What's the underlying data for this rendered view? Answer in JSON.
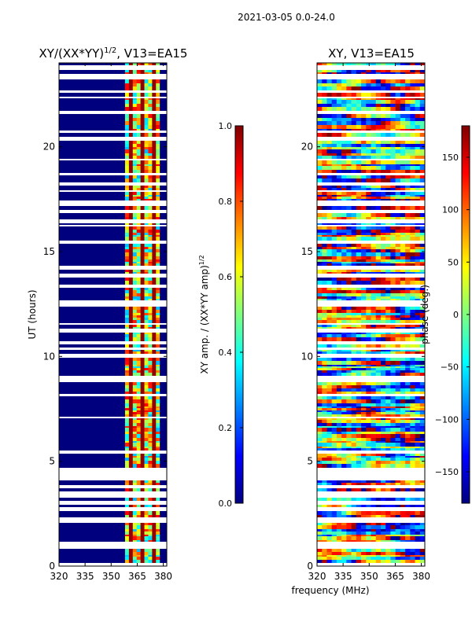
{
  "figure": {
    "suptitle": "2021-03-05 0.0-24.0",
    "shared_xlabel": "frequency (MHz)"
  },
  "chart_data": [
    {
      "type": "heatmap",
      "title": "XY/(XX*YY)^1/2, V13=EA15",
      "title_main": "XY/(XX*YY)",
      "title_exp": "1/2",
      "title_suffix": ", V13=EA15",
      "xlabel": "frequency (MHz)",
      "ylabel": "UT (hours)",
      "xlim": [
        320,
        382
      ],
      "ylim": [
        0,
        24
      ],
      "xticks": [
        320,
        335,
        350,
        365,
        380
      ],
      "yticks": [
        0,
        5,
        10,
        15,
        20
      ],
      "colormap": "jet",
      "colorbar": {
        "label": "XY amp. / (XX*YY amp)^1/2",
        "label_main": "XY amp. / (XX*YY amp)",
        "label_exp": "1/2",
        "vmin": 0.0,
        "vmax": 1.0,
        "ticks": [
          "0.0",
          "0.2",
          "0.4",
          "0.6",
          "0.8",
          "1.0"
        ],
        "tick_values": [
          0.0,
          0.2,
          0.4,
          0.6,
          0.8,
          1.0
        ]
      },
      "description_values": {
        "low_band_level": 0.0,
        "high_band_range_mhz": [
          358,
          378
        ],
        "high_band_level_range": [
          0.3,
          0.9
        ]
      }
    },
    {
      "type": "heatmap",
      "title": "XY, V13=EA15",
      "xlabel": "frequency (MHz)",
      "ylabel": "",
      "xlim": [
        320,
        382
      ],
      "ylim": [
        0,
        24
      ],
      "xticks": [
        320,
        335,
        350,
        365,
        380
      ],
      "yticks": [
        0,
        5,
        10,
        15,
        20
      ],
      "colormap": "jet",
      "colorbar": {
        "label": "phase (deg.)",
        "vmin": -180,
        "vmax": 180,
        "ticks": [
          "−150",
          "−100",
          "−50",
          "0",
          "50",
          "100",
          "150"
        ],
        "tick_values": [
          -150,
          -100,
          -50,
          0,
          50,
          100,
          150
        ]
      }
    }
  ],
  "colors": {
    "jet_stops": [
      "#00007f",
      "#0000ff",
      "#007fff",
      "#00ffff",
      "#7fff7f",
      "#ffff00",
      "#ff7f00",
      "#ff0000",
      "#7f0000"
    ],
    "axis": "#000000",
    "background": "#ffffff"
  }
}
